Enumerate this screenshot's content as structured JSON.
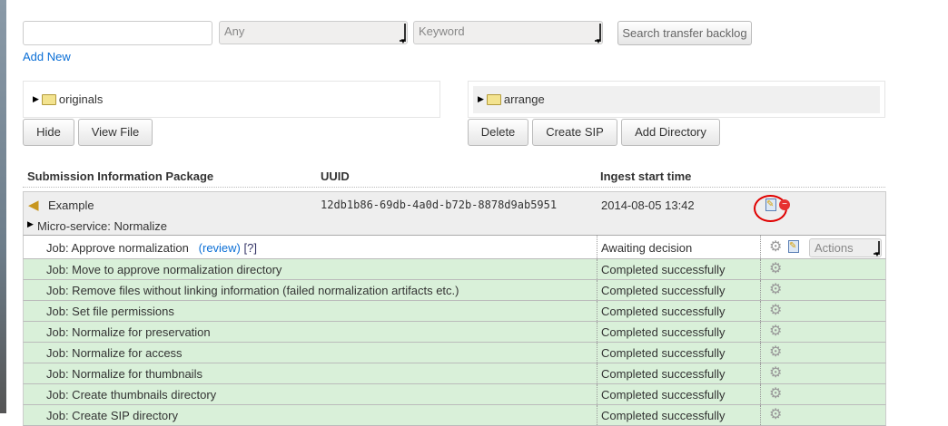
{
  "search": {
    "query_value": "",
    "field_select": "Any",
    "type_select": "Keyword",
    "search_button": "Search transfer backlog",
    "add_new": "Add New"
  },
  "trees": {
    "left_root": "originals",
    "right_root": "arrange"
  },
  "left_buttons": [
    "Hide",
    "View File"
  ],
  "right_buttons": [
    "Delete",
    "Create SIP",
    "Add Directory"
  ],
  "table": {
    "headers": [
      "Submission Information Package",
      "UUID",
      "Ingest start time"
    ],
    "sip": {
      "name": "Example",
      "uuid": "12db1b86-69db-4a0d-b72b-8878d9ab5951",
      "start_time": "2014-08-05 13:42"
    },
    "microservice": "Micro-service: Normalize",
    "pending_job": {
      "name": "Job: Approve normalization",
      "review": "(review)",
      "help": "[?]",
      "status": "Awaiting decision",
      "actions": "Actions"
    },
    "jobs": [
      {
        "name": "Job: Move to approve normalization directory",
        "status": "Completed successfully"
      },
      {
        "name": "Job: Remove files without linking information (failed normalization artifacts etc.)",
        "status": "Completed successfully"
      },
      {
        "name": "Job: Set file permissions",
        "status": "Completed successfully"
      },
      {
        "name": "Job: Normalize for preservation",
        "status": "Completed successfully"
      },
      {
        "name": "Job: Normalize for access",
        "status": "Completed successfully"
      },
      {
        "name": "Job: Normalize for thumbnails",
        "status": "Completed successfully"
      },
      {
        "name": "Job: Create thumbnails directory",
        "status": "Completed successfully"
      },
      {
        "name": "Job: Create SIP directory",
        "status": "Completed successfully"
      }
    ]
  },
  "colors": {
    "completed_row": "#d9f0d9",
    "link": "#0b6fd6",
    "highlight_circle": "#e00000"
  }
}
